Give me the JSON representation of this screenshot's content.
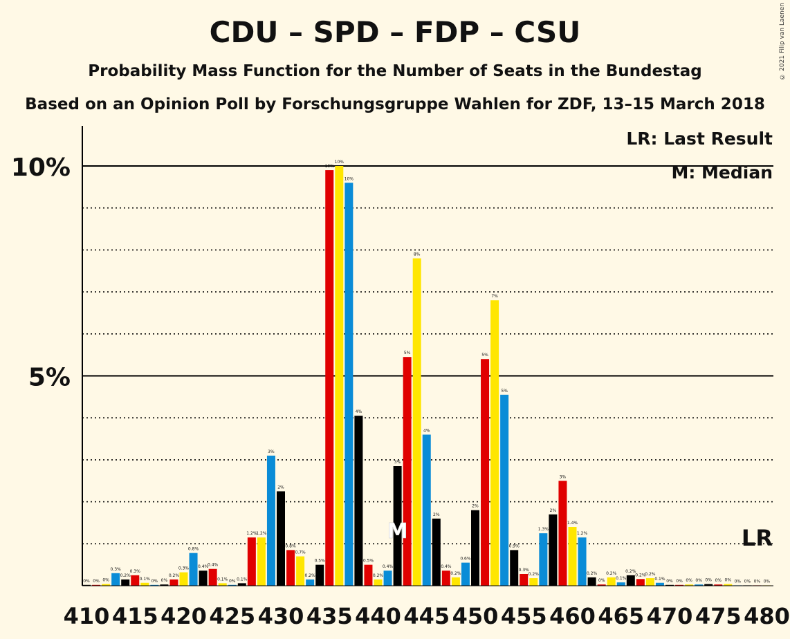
{
  "title": "CDU – SPD – FDP – CSU",
  "subtitle": "Probability Mass Function for the Number of Seats in the Bundestag",
  "subtitle2": "Based on an Opinion Poll by Forschungsgruppe Wahlen for ZDF, 13–15 March 2018",
  "copyright": "© 2021 Filip van Laenen",
  "legend": {
    "lr": "LR: Last Result",
    "median": "M: Median"
  },
  "markers": {
    "lr_label": "LR",
    "median_label": "M"
  },
  "chart_data": {
    "type": "bar",
    "title": "CDU – SPD – FDP – CSU",
    "x_ticks": [
      "410",
      "415",
      "420",
      "425",
      "430",
      "435",
      "440",
      "445",
      "450",
      "455",
      "460",
      "465",
      "470",
      "475",
      "480"
    ],
    "y_ticks": [
      "5%",
      "10%"
    ],
    "ylim": [
      0,
      10.5
    ],
    "xlim": [
      410,
      480
    ],
    "colors": [
      "#0A8CD7",
      "#000000",
      "#E00000",
      "#FFE600"
    ],
    "last_result_seat": 479,
    "median_seat": 442,
    "bars": [
      {
        "seat": 410,
        "value": 0.02,
        "label": "0%"
      },
      {
        "seat": 411,
        "value": 0.02,
        "label": "0%"
      },
      {
        "seat": 412,
        "value": 0.04,
        "label": "0%"
      },
      {
        "seat": 413,
        "value": 0.3,
        "label": "0.3%"
      },
      {
        "seat": 414,
        "value": 0.15,
        "label": "0.2%"
      },
      {
        "seat": 415,
        "value": 0.25,
        "label": "0.3%"
      },
      {
        "seat": 416,
        "value": 0.07,
        "label": "0.1%"
      },
      {
        "seat": 417,
        "value": 0.02,
        "label": "0%"
      },
      {
        "seat": 418,
        "value": 0.03,
        "label": "0%"
      },
      {
        "seat": 419,
        "value": 0.15,
        "label": "0.2%"
      },
      {
        "seat": 420,
        "value": 0.32,
        "label": "0.3%"
      },
      {
        "seat": 421,
        "value": 0.78,
        "label": "0.8%"
      },
      {
        "seat": 422,
        "value": 0.36,
        "label": "0.4%"
      },
      {
        "seat": 423,
        "value": 0.4,
        "label": "0.4%"
      },
      {
        "seat": 424,
        "value": 0.06,
        "label": "0.1%"
      },
      {
        "seat": 425,
        "value": 0.02,
        "label": "0%"
      },
      {
        "seat": 426,
        "value": 0.06,
        "label": "0.1%"
      },
      {
        "seat": 427,
        "value": 1.15,
        "label": "1.2%"
      },
      {
        "seat": 428,
        "value": 1.15,
        "label": "1.2%"
      },
      {
        "seat": 429,
        "value": 3.1,
        "label": "3%"
      },
      {
        "seat": 430,
        "value": 2.25,
        "label": "2%"
      },
      {
        "seat": 431,
        "value": 0.85,
        "label": "0.8%"
      },
      {
        "seat": 432,
        "value": 0.7,
        "label": "0.7%"
      },
      {
        "seat": 433,
        "value": 0.15,
        "label": "0.2%"
      },
      {
        "seat": 434,
        "value": 0.5,
        "label": "0.5%"
      },
      {
        "seat": 435,
        "value": 9.9,
        "label": "10%"
      },
      {
        "seat": 436,
        "value": 10.0,
        "label": "10%"
      },
      {
        "seat": 437,
        "value": 9.6,
        "label": "10%"
      },
      {
        "seat": 438,
        "value": 4.05,
        "label": "4%"
      },
      {
        "seat": 439,
        "value": 0.5,
        "label": "0.5%"
      },
      {
        "seat": 440,
        "value": 0.15,
        "label": "0.2%"
      },
      {
        "seat": 441,
        "value": 0.36,
        "label": "0.4%"
      },
      {
        "seat": 442,
        "value": 2.85,
        "label": "3%"
      },
      {
        "seat": 443,
        "value": 5.45,
        "label": "5%"
      },
      {
        "seat": 444,
        "value": 7.8,
        "label": "8%"
      },
      {
        "seat": 445,
        "value": 3.6,
        "label": "4%"
      },
      {
        "seat": 446,
        "value": 1.6,
        "label": "2%"
      },
      {
        "seat": 447,
        "value": 0.36,
        "label": "0.4%"
      },
      {
        "seat": 448,
        "value": 0.2,
        "label": "0.2%"
      },
      {
        "seat": 449,
        "value": 0.55,
        "label": "0.6%"
      },
      {
        "seat": 450,
        "value": 1.8,
        "label": "2%"
      },
      {
        "seat": 451,
        "value": 5.4,
        "label": "5%"
      },
      {
        "seat": 452,
        "value": 6.8,
        "label": "7%"
      },
      {
        "seat": 453,
        "value": 4.55,
        "label": "5%"
      },
      {
        "seat": 454,
        "value": 0.85,
        "label": "0.9%"
      },
      {
        "seat": 455,
        "value": 0.28,
        "label": "0.3%"
      },
      {
        "seat": 456,
        "value": 0.18,
        "label": "0.2%"
      },
      {
        "seat": 457,
        "value": 1.25,
        "label": "1.3%"
      },
      {
        "seat": 458,
        "value": 1.7,
        "label": "2%"
      },
      {
        "seat": 459,
        "value": 2.5,
        "label": "3%"
      },
      {
        "seat": 460,
        "value": 1.4,
        "label": "1.4%"
      },
      {
        "seat": 461,
        "value": 1.15,
        "label": "1.2%"
      },
      {
        "seat": 462,
        "value": 0.2,
        "label": "0.2%"
      },
      {
        "seat": 463,
        "value": 0.03,
        "label": "0%"
      },
      {
        "seat": 464,
        "value": 0.2,
        "label": "0.2%"
      },
      {
        "seat": 465,
        "value": 0.08,
        "label": "0.1%"
      },
      {
        "seat": 466,
        "value": 0.25,
        "label": "0.2%"
      },
      {
        "seat": 467,
        "value": 0.16,
        "label": "0.2%"
      },
      {
        "seat": 468,
        "value": 0.18,
        "label": "0.2%"
      },
      {
        "seat": 469,
        "value": 0.07,
        "label": "0.1%"
      },
      {
        "seat": 470,
        "value": 0.02,
        "label": "0%"
      },
      {
        "seat": 471,
        "value": 0.02,
        "label": "0%"
      },
      {
        "seat": 472,
        "value": 0.03,
        "label": "0%"
      },
      {
        "seat": 473,
        "value": 0.03,
        "label": "0%"
      },
      {
        "seat": 474,
        "value": 0.04,
        "label": "0%"
      },
      {
        "seat": 475,
        "value": 0.03,
        "label": "0%"
      },
      {
        "seat": 476,
        "value": 0.04,
        "label": "0%"
      },
      {
        "seat": 477,
        "value": 0.01,
        "label": "0%"
      },
      {
        "seat": 478,
        "value": 0.01,
        "label": "0%"
      },
      {
        "seat": 479,
        "value": 0.01,
        "label": "0%"
      },
      {
        "seat": 480,
        "value": 0.01,
        "label": "0%"
      }
    ]
  }
}
